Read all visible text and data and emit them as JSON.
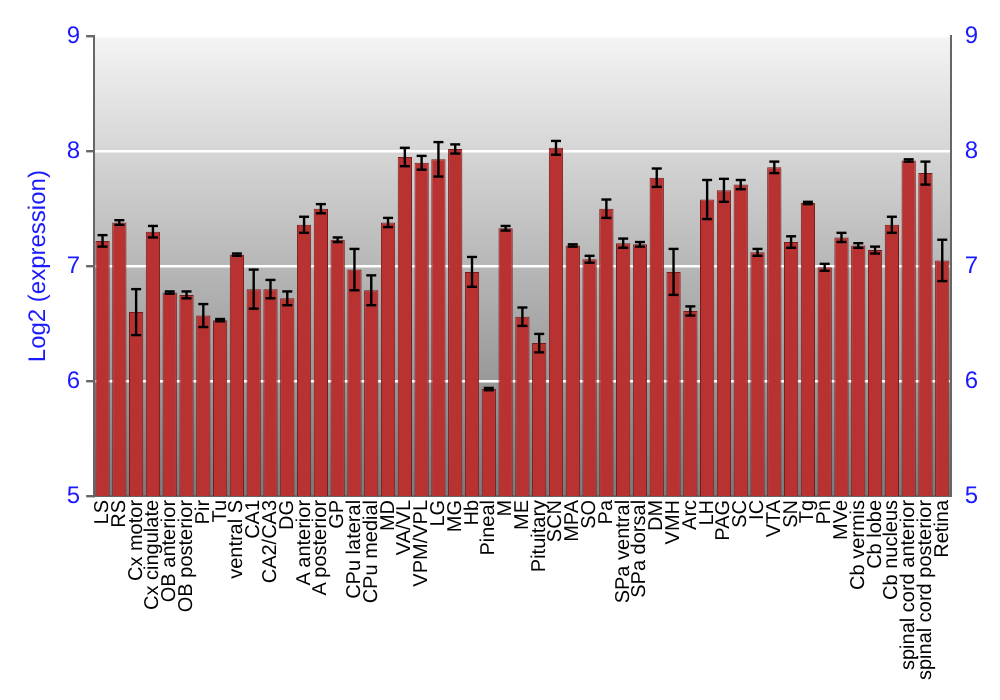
{
  "chart_data": {
    "type": "bar",
    "ylabel": "Log2 (expression)",
    "categories": [
      "LS",
      "RS",
      "Cx motor",
      "Cx cingulate",
      "OB anterior",
      "OB posterior",
      "Pir",
      "Tu",
      "ventral S",
      "CA1",
      "CA2/CA3",
      "DG",
      "A anterior",
      "A posterior",
      "GP",
      "CPu lateral",
      "CPu medial",
      "MD",
      "VA/VL",
      "VPM/VPL",
      "LG",
      "MG",
      "Hb",
      "Pineal",
      "M",
      "ME",
      "Pituitary",
      "SCN",
      "MPA",
      "SO",
      "Pa",
      "SPa ventral",
      "SPa dorsal",
      "DM",
      "VMH",
      "Arc",
      "LH",
      "PAG",
      "SC",
      "IC",
      "VTA",
      "SN",
      "Tg",
      "Pn",
      "MVe",
      "Cb vermis",
      "Cb lobe",
      "Cb nucleus",
      "spinal cord anterior",
      "spinal cord posterior",
      "Retina"
    ],
    "values": [
      7.22,
      7.38,
      6.6,
      7.3,
      6.77,
      6.75,
      6.57,
      6.53,
      7.1,
      6.8,
      6.8,
      6.72,
      7.36,
      7.5,
      7.23,
      6.97,
      6.79,
      7.38,
      7.95,
      7.9,
      7.93,
      8.02,
      6.95,
      5.93,
      7.33,
      6.56,
      6.33,
      8.03,
      7.18,
      7.06,
      7.5,
      7.2,
      7.19,
      7.77,
      6.95,
      6.61,
      7.58,
      7.66,
      7.71,
      7.12,
      7.86,
      7.21,
      7.55,
      6.99,
      7.25,
      7.18,
      7.14,
      7.36,
      7.92,
      7.81,
      7.05
    ],
    "errors": [
      0.05,
      0.02,
      0.2,
      0.05,
      0.01,
      0.03,
      0.1,
      0.01,
      0.01,
      0.17,
      0.08,
      0.06,
      0.07,
      0.04,
      0.02,
      0.18,
      0.13,
      0.04,
      0.08,
      0.06,
      0.15,
      0.04,
      0.13,
      0.01,
      0.02,
      0.08,
      0.08,
      0.06,
      0.01,
      0.03,
      0.08,
      0.04,
      0.02,
      0.08,
      0.2,
      0.04,
      0.17,
      0.1,
      0.04,
      0.03,
      0.05,
      0.05,
      0.01,
      0.03,
      0.04,
      0.02,
      0.03,
      0.07,
      0.01,
      0.1,
      0.18
    ],
    "color": "#b83232",
    "ylim": [
      5,
      9
    ],
    "yticks": [
      5,
      6,
      7,
      8,
      9
    ],
    "y2lim": [
      5,
      9
    ],
    "y2ticks": [
      5,
      6,
      7,
      8,
      9
    ],
    "grid": "y",
    "legend": false
  }
}
